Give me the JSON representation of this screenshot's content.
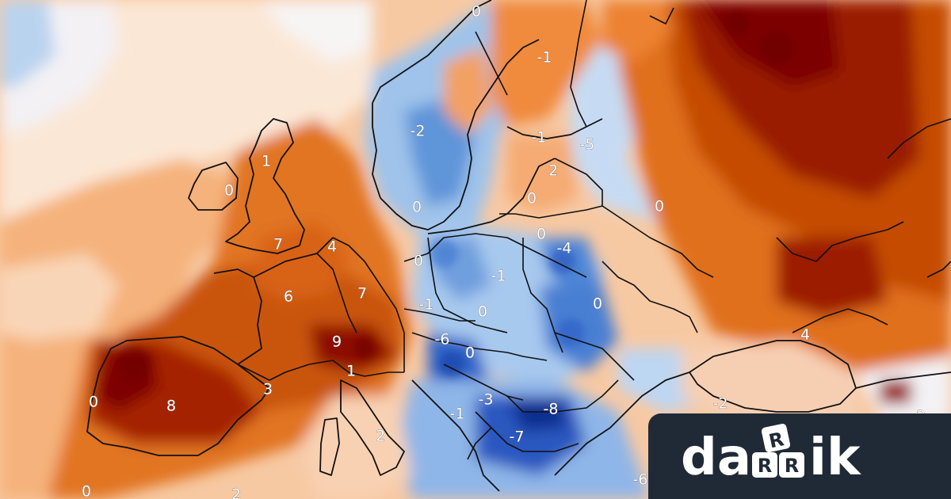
{
  "map": {
    "labels": [
      {
        "id": "l1",
        "text": "0"
      },
      {
        "id": "l2",
        "text": "-1"
      },
      {
        "id": "l3",
        "text": "-2"
      },
      {
        "id": "l4",
        "text": "1"
      },
      {
        "id": "l5",
        "text": "0"
      },
      {
        "id": "l6",
        "text": "-1"
      },
      {
        "id": "l7",
        "text": "-5"
      },
      {
        "id": "l8",
        "text": "2"
      },
      {
        "id": "l9",
        "text": "0"
      },
      {
        "id": "l10",
        "text": "0"
      },
      {
        "id": "l11",
        "text": "0"
      },
      {
        "id": "l12",
        "text": "0"
      },
      {
        "id": "l13",
        "text": "7"
      },
      {
        "id": "l14",
        "text": "4"
      },
      {
        "id": "l15",
        "text": "-4"
      },
      {
        "id": "l16",
        "text": "0"
      },
      {
        "id": "l17",
        "text": "-1"
      },
      {
        "id": "l18",
        "text": "6"
      },
      {
        "id": "l19",
        "text": "7"
      },
      {
        "id": "l20",
        "text": "-1"
      },
      {
        "id": "l21",
        "text": "0"
      },
      {
        "id": "l22",
        "text": "0"
      },
      {
        "id": "l23",
        "text": "-6"
      },
      {
        "id": "l24",
        "text": "9"
      },
      {
        "id": "l25",
        "text": "0"
      },
      {
        "id": "l26",
        "text": "1"
      },
      {
        "id": "l27",
        "text": "0"
      },
      {
        "id": "l28",
        "text": "8"
      },
      {
        "id": "l29",
        "text": "3"
      },
      {
        "id": "l30",
        "text": "-3"
      },
      {
        "id": "l31",
        "text": "-1"
      },
      {
        "id": "l32",
        "text": "-8"
      },
      {
        "id": "l33",
        "text": "-7"
      },
      {
        "id": "l34",
        "text": "2"
      },
      {
        "id": "l35",
        "text": "-2"
      },
      {
        "id": "l36",
        "text": "4"
      },
      {
        "id": "l37",
        "text": "2"
      },
      {
        "id": "l38",
        "text": "0"
      },
      {
        "id": "l39",
        "text": "2"
      },
      {
        "id": "l40",
        "text": "-6"
      }
    ]
  },
  "colors": {
    "deep_red": "#7a0000",
    "red": "#a81a00",
    "dark_orange": "#c64a00",
    "orange": "#e8731a",
    "light_orange": "#f4a66a",
    "pale_orange": "#f9d2b0",
    "white": "#fbf4ef",
    "pale_blue": "#d6e6f7",
    "light_blue": "#9cc4ec",
    "blue": "#4f8ad6",
    "dark_blue": "#1e4db7",
    "deep_blue": "#0b2a8a",
    "logo_bg": "#202a36",
    "logo_text": "#ffffff"
  },
  "logo": {
    "text": "darrik"
  }
}
